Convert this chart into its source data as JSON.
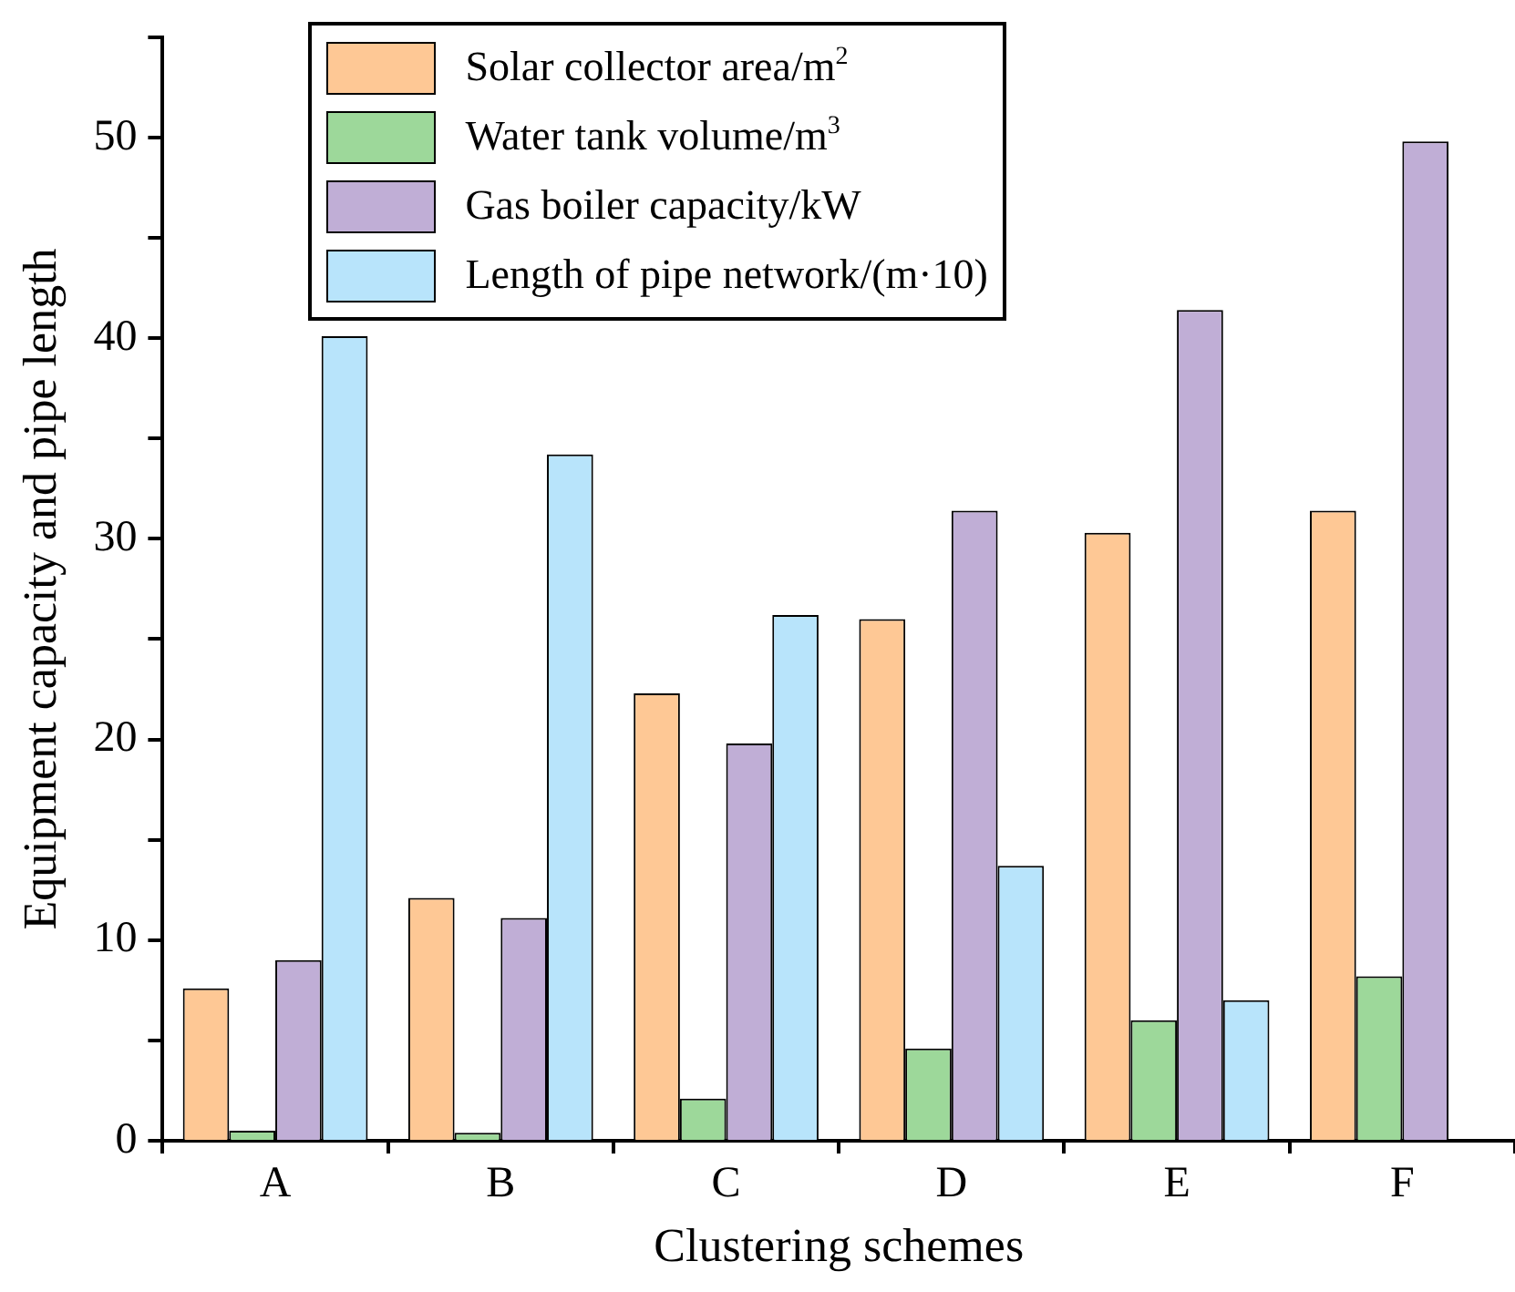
{
  "chart_data": {
    "type": "bar",
    "xlabel": "Clustering schemes",
    "ylabel": "Equipment capacity and pipe length",
    "categories": [
      "A",
      "B",
      "C",
      "D",
      "E",
      "F"
    ],
    "series": [
      {
        "name": "Solar collector area/m$^{2}$",
        "color": "#fec895",
        "values": [
          7.6,
          12.1,
          22.3,
          26.0,
          30.3,
          31.4
        ]
      },
      {
        "name": "Water tank volume/m$^{3}$",
        "color": "#9dd89a",
        "values": [
          0.5,
          0.4,
          2.1,
          4.6,
          6.0,
          8.2
        ]
      },
      {
        "name": "Gas boiler capacity/kW",
        "color": "#c0aed6",
        "values": [
          9.0,
          11.1,
          19.8,
          31.4,
          41.4,
          49.8
        ]
      },
      {
        "name": "Length of pipe network/(m·10)",
        "color": "#b8e4fb",
        "values": [
          40.1,
          34.2,
          26.2,
          13.7,
          7.0,
          null
        ]
      }
    ],
    "ylim": [
      0,
      55
    ],
    "yticks": [
      0,
      {
        "value": 5,
        "label": null
      },
      10,
      {
        "value": 15,
        "label": null
      },
      20,
      {
        "value": 25,
        "label": null
      },
      30,
      {
        "value": 35,
        "label": null
      },
      40,
      {
        "value": 45,
        "label": null
      },
      50,
      {
        "value": 55,
        "label": null
      }
    ],
    "grid": false,
    "legend": "top"
  }
}
